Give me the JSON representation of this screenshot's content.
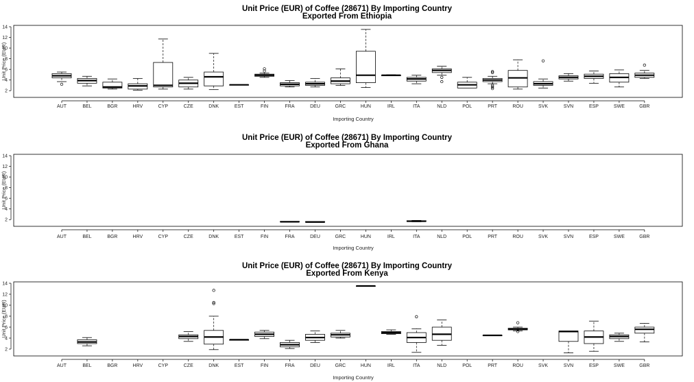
{
  "chart_data": [
    {
      "type": "boxplot",
      "title": "Unit Price (EUR) of Coffee (28671) By Importing Country",
      "subtitle": "Exported From Ethiopia",
      "xlabel": "Importing Country",
      "ylabel": "Unit Price (EUR)",
      "ylim": [
        1,
        14
      ],
      "yticks": [
        2,
        4,
        6,
        8,
        10,
        12,
        14
      ],
      "categories": [
        "AUT",
        "BEL",
        "BGR",
        "HRV",
        "CYP",
        "CZE",
        "DNK",
        "EST",
        "FIN",
        "FRA",
        "DEU",
        "GRC",
        "HUN",
        "IRL",
        "ITA",
        "NLD",
        "POL",
        "PRT",
        "ROU",
        "SVK",
        "SVN",
        "ESP",
        "SWE",
        "GBR"
      ],
      "boxes": [
        {
          "category": "AUT",
          "min": 3.7,
          "q1": 4.4,
          "median": 4.8,
          "q3": 5.2,
          "max": 5.5,
          "outliers": [
            3.2
          ]
        },
        {
          "category": "BEL",
          "min": 2.9,
          "q1": 3.4,
          "median": 3.9,
          "q3": 4.3,
          "max": 4.7,
          "outliers": []
        },
        {
          "category": "BGR",
          "min": 2.3,
          "q1": 2.5,
          "median": 2.7,
          "q3": 3.6,
          "max": 4.2,
          "outliers": []
        },
        {
          "category": "HRV",
          "min": 2.1,
          "q1": 2.3,
          "median": 2.9,
          "q3": 3.3,
          "max": 4.3,
          "outliers": []
        },
        {
          "category": "CYP",
          "min": 2.3,
          "q1": 2.7,
          "median": 3.0,
          "q3": 7.3,
          "max": 11.7,
          "outliers": []
        },
        {
          "category": "CZE",
          "min": 2.3,
          "q1": 2.7,
          "median": 3.4,
          "q3": 4.0,
          "max": 4.5,
          "outliers": []
        },
        {
          "category": "DNK",
          "min": 2.2,
          "q1": 2.9,
          "median": 4.6,
          "q3": 5.5,
          "max": 9.0,
          "outliers": []
        },
        {
          "category": "EST",
          "min": 3.1,
          "q1": 3.1,
          "median": 3.1,
          "q3": 3.1,
          "max": 3.1,
          "outliers": []
        },
        {
          "category": "FIN",
          "min": 4.5,
          "q1": 4.7,
          "median": 4.9,
          "q3": 5.1,
          "max": 5.3,
          "outliers": [
            5.7,
            6.1
          ]
        },
        {
          "category": "FRA",
          "min": 2.7,
          "q1": 2.9,
          "median": 3.2,
          "q3": 3.5,
          "max": 3.9,
          "outliers": []
        },
        {
          "category": "DEU",
          "min": 2.7,
          "q1": 3.0,
          "median": 3.3,
          "q3": 3.6,
          "max": 4.3,
          "outliers": []
        },
        {
          "category": "GRC",
          "min": 3.0,
          "q1": 3.3,
          "median": 3.8,
          "q3": 4.4,
          "max": 6.1,
          "outliers": []
        },
        {
          "category": "HUN",
          "min": 2.6,
          "q1": 3.5,
          "median": 4.9,
          "q3": 9.4,
          "max": 13.5,
          "outliers": []
        },
        {
          "category": "IRL",
          "min": 4.8,
          "q1": 4.8,
          "median": 4.9,
          "q3": 4.9,
          "max": 5.0,
          "outliers": []
        },
        {
          "category": "ITA",
          "min": 3.3,
          "q1": 3.8,
          "median": 4.2,
          "q3": 4.5,
          "max": 4.9,
          "outliers": []
        },
        {
          "category": "NLD",
          "min": 4.9,
          "q1": 5.4,
          "median": 5.8,
          "q3": 6.1,
          "max": 6.6,
          "outliers": [
            4.5,
            3.7
          ]
        },
        {
          "category": "POL",
          "min": 2.5,
          "q1": 2.5,
          "median": 3.1,
          "q3": 3.6,
          "max": 4.5,
          "outliers": []
        },
        {
          "category": "PRT",
          "min": 3.3,
          "q1": 3.7,
          "median": 4.0,
          "q3": 4.3,
          "max": 4.7,
          "outliers": [
            2.4,
            2.7,
            3.0,
            5.4,
            5.6
          ]
        },
        {
          "category": "ROU",
          "min": 2.3,
          "q1": 2.7,
          "median": 4.4,
          "q3": 5.8,
          "max": 7.8,
          "outliers": []
        },
        {
          "category": "SVK",
          "min": 2.5,
          "q1": 3.0,
          "median": 3.3,
          "q3": 3.7,
          "max": 4.2,
          "outliers": [
            7.6
          ]
        },
        {
          "category": "SVN",
          "min": 3.8,
          "q1": 4.2,
          "median": 4.5,
          "q3": 4.8,
          "max": 5.2,
          "outliers": []
        },
        {
          "category": "ESP",
          "min": 3.4,
          "q1": 4.3,
          "median": 4.7,
          "q3": 5.1,
          "max": 5.7,
          "outliers": []
        },
        {
          "category": "SWE",
          "min": 2.7,
          "q1": 3.6,
          "median": 4.5,
          "q3": 5.2,
          "max": 5.9,
          "outliers": []
        },
        {
          "category": "GBR",
          "min": 4.3,
          "q1": 4.5,
          "median": 4.9,
          "q3": 5.3,
          "max": 5.8,
          "outliers": [
            6.8
          ]
        }
      ]
    },
    {
      "type": "boxplot",
      "title": "Unit Price (EUR) of Coffee (28671) By Importing Country",
      "subtitle": "Exported From Ghana",
      "xlabel": "Importing Country",
      "ylabel": "Unit Price (EUR)",
      "ylim": [
        1,
        14
      ],
      "yticks": [
        2,
        4,
        6,
        8,
        10,
        12,
        14
      ],
      "categories": [
        "AUT",
        "BEL",
        "BGR",
        "HRV",
        "CYP",
        "CZE",
        "DNK",
        "EST",
        "FIN",
        "FRA",
        "DEU",
        "GRC",
        "HUN",
        "IRL",
        "ITA",
        "NLD",
        "POL",
        "PRT",
        "ROU",
        "SVK",
        "SVN",
        "ESP",
        "SWE",
        "GBR"
      ],
      "boxes": [
        {
          "category": "FRA",
          "min": 1.6,
          "q1": 1.6,
          "median": 1.6,
          "q3": 1.65,
          "max": 1.65,
          "outliers": []
        },
        {
          "category": "DEU",
          "min": 1.5,
          "q1": 1.5,
          "median": 1.55,
          "q3": 1.65,
          "max": 1.65,
          "outliers": []
        },
        {
          "category": "ITA",
          "min": 1.6,
          "q1": 1.65,
          "median": 1.7,
          "q3": 1.8,
          "max": 1.85,
          "outliers": []
        }
      ]
    },
    {
      "type": "boxplot",
      "title": "Unit Price (EUR) of Coffee (28671) By Importing Country",
      "subtitle": "Exported From Kenya",
      "xlabel": "Importing Country",
      "ylabel": "Unit Price (EUR)",
      "ylim": [
        1,
        14
      ],
      "yticks": [
        2,
        4,
        6,
        8,
        10,
        12,
        14
      ],
      "categories": [
        "AUT",
        "BEL",
        "BGR",
        "HRV",
        "CYP",
        "CZE",
        "DNK",
        "EST",
        "FIN",
        "FRA",
        "DEU",
        "GRC",
        "HUN",
        "IRL",
        "ITA",
        "NLD",
        "POL",
        "PRT",
        "ROU",
        "SVK",
        "SVN",
        "ESP",
        "SWE",
        "GBR"
      ],
      "boxes": [
        {
          "category": "BEL",
          "min": 2.6,
          "q1": 3.0,
          "median": 3.3,
          "q3": 3.7,
          "max": 4.1,
          "outliers": []
        },
        {
          "category": "CZE",
          "min": 3.4,
          "q1": 3.9,
          "median": 4.3,
          "q3": 4.6,
          "max": 5.2,
          "outliers": []
        },
        {
          "category": "DNK",
          "min": 1.9,
          "q1": 2.9,
          "median": 4.2,
          "q3": 5.4,
          "max": 8.0,
          "outliers": [
            10.3,
            10.5,
            12.7
          ]
        },
        {
          "category": "EST",
          "min": 3.6,
          "q1": 3.6,
          "median": 3.7,
          "q3": 3.7,
          "max": 3.7,
          "outliers": []
        },
        {
          "category": "FIN",
          "min": 3.9,
          "q1": 4.3,
          "median": 4.7,
          "q3": 5.1,
          "max": 5.4,
          "outliers": []
        },
        {
          "category": "FRA",
          "min": 2.1,
          "q1": 2.4,
          "median": 2.8,
          "q3": 3.2,
          "max": 3.6,
          "outliers": []
        },
        {
          "category": "DEU",
          "min": 3.2,
          "q1": 3.6,
          "median": 4.1,
          "q3": 4.7,
          "max": 5.3,
          "outliers": []
        },
        {
          "category": "GRC",
          "min": 4.0,
          "q1": 4.2,
          "median": 4.6,
          "q3": 4.9,
          "max": 5.4,
          "outliers": []
        },
        {
          "category": "HUN",
          "min": 13.5,
          "q1": 13.5,
          "median": 13.5,
          "q3": 13.5,
          "max": 13.5,
          "outliers": []
        },
        {
          "category": "IRL",
          "min": 4.7,
          "q1": 4.8,
          "median": 5.0,
          "q3": 5.2,
          "max": 5.5,
          "outliers": []
        },
        {
          "category": "ITA",
          "min": 1.4,
          "q1": 3.2,
          "median": 4.1,
          "q3": 5.0,
          "max": 5.7,
          "outliers": [
            7.9
          ]
        },
        {
          "category": "NLD",
          "min": 2.7,
          "q1": 3.6,
          "median": 4.7,
          "q3": 6.0,
          "max": 7.3,
          "outliers": []
        },
        {
          "category": "PRT",
          "min": 4.5,
          "q1": 4.5,
          "median": 4.5,
          "q3": 4.5,
          "max": 4.5,
          "outliers": []
        },
        {
          "category": "ROU",
          "min": 5.3,
          "q1": 5.5,
          "median": 5.6,
          "q3": 5.8,
          "max": 6.0,
          "outliers": [
            5.2,
            6.8
          ]
        },
        {
          "category": "SVN",
          "min": 1.3,
          "q1": 3.4,
          "median": 5.2,
          "q3": 5.3,
          "max": 5.3,
          "outliers": []
        },
        {
          "category": "ESP",
          "min": 1.6,
          "q1": 3.0,
          "median": 4.2,
          "q3": 5.3,
          "max": 7.1,
          "outliers": []
        },
        {
          "category": "SWE",
          "min": 3.4,
          "q1": 3.9,
          "median": 4.3,
          "q3": 4.6,
          "max": 4.9,
          "outliers": []
        },
        {
          "category": "GBR",
          "min": 3.3,
          "q1": 4.9,
          "median": 5.6,
          "q3": 6.0,
          "max": 6.7,
          "outliers": []
        }
      ]
    }
  ]
}
